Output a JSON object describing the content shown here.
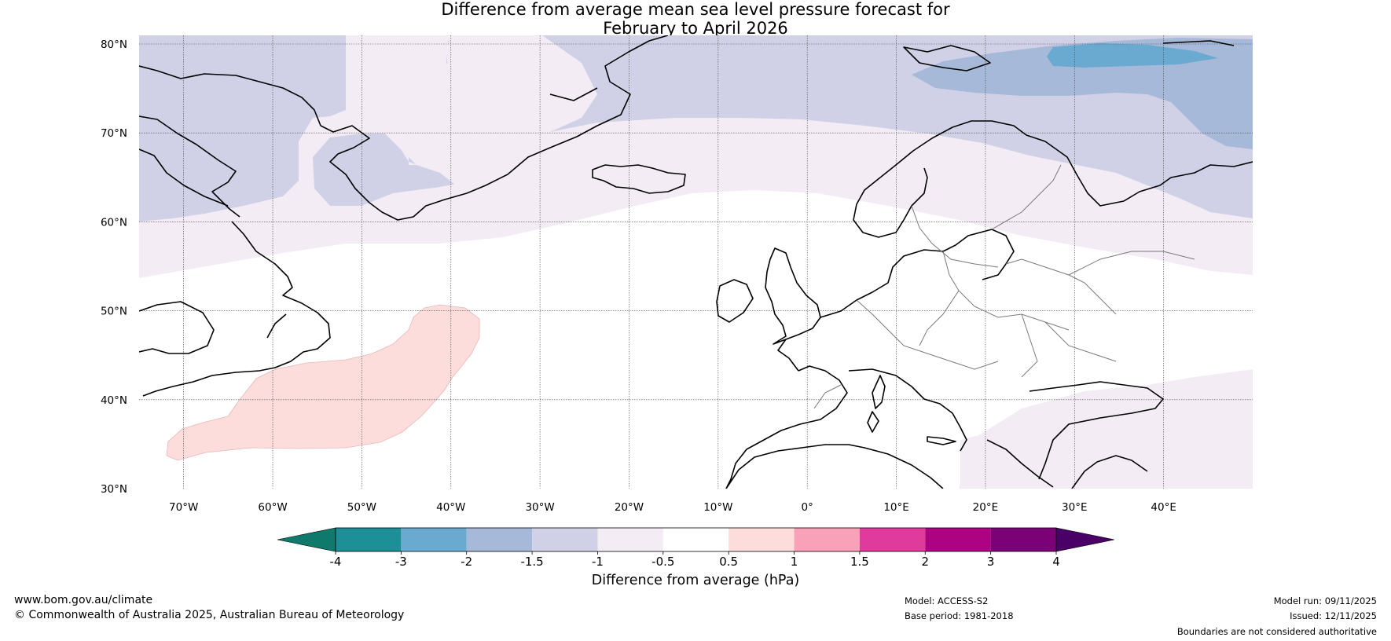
{
  "title": {
    "line1": "Difference from average mean sea level pressure forecast for",
    "line2": "February to April 2026"
  },
  "map": {
    "lat_labels": [
      "80°N",
      "70°N",
      "60°N",
      "50°N",
      "40°N",
      "30°N"
    ],
    "lat_values": [
      80,
      70,
      60,
      50,
      40,
      30
    ],
    "lon_labels": [
      "70°W",
      "60°W",
      "50°W",
      "40°W",
      "30°W",
      "20°W",
      "10°W",
      "0°",
      "10°E",
      "20°E",
      "30°E",
      "40°E"
    ],
    "lon_values": [
      -70,
      -60,
      -50,
      -40,
      -30,
      -20,
      -10,
      0,
      10,
      20,
      30,
      40
    ],
    "extent": {
      "lon_min": -75,
      "lon_max": 50,
      "lat_min": 30,
      "lat_max": 81
    },
    "anomaly_regions": [
      {
        "category": "-2 to -1.5",
        "color": "#a6b9d8",
        "area": "Barents Sea / Svalbard"
      },
      {
        "category": "-3 to -2",
        "color": "#6aaad0",
        "area": "North of Svalbard"
      },
      {
        "category": "-1.5 to -1",
        "color": "#d0d1e6",
        "area": "Greenland, Baffin, Arctic"
      },
      {
        "category": "-1 to -0.5",
        "color": "#f3ecf5",
        "area": "Labrador Sea, Norwegian Sea, Scandinavia, East Mediterranean"
      },
      {
        "category": "0.5 to 1",
        "color": "#fddcdc",
        "area": "Central North Atlantic"
      }
    ]
  },
  "colorbar": {
    "ticks": [
      "-4",
      "-3",
      "-2",
      "-1.5",
      "-1",
      "-0.5",
      "0.5",
      "1",
      "1.5",
      "2",
      "3",
      "4"
    ],
    "colors": [
      "#1d9097",
      "#6aaad0",
      "#a6b9d8",
      "#d0d1e6",
      "#f3ecf5",
      "#ffffff",
      "#fddcdc",
      "#f9a1b8",
      "#e03a9c",
      "#ad0383",
      "#7b0177"
    ],
    "under_color": "#0f7a6b",
    "over_color": "#4b0068",
    "label": "Difference from average (hPa)"
  },
  "footer": {
    "website": "www.bom.gov.au/climate",
    "copyright": "© Commonwealth of Australia 2025, Australian Bureau of Meteorology",
    "model": "Model: ACCESS-S2",
    "base_period": "Base period: 1981-2018",
    "model_run": "Model run: 09/11/2025",
    "issued": "Issued: 12/11/2025",
    "disclaimer": "Boundaries are not considered authoritative"
  }
}
